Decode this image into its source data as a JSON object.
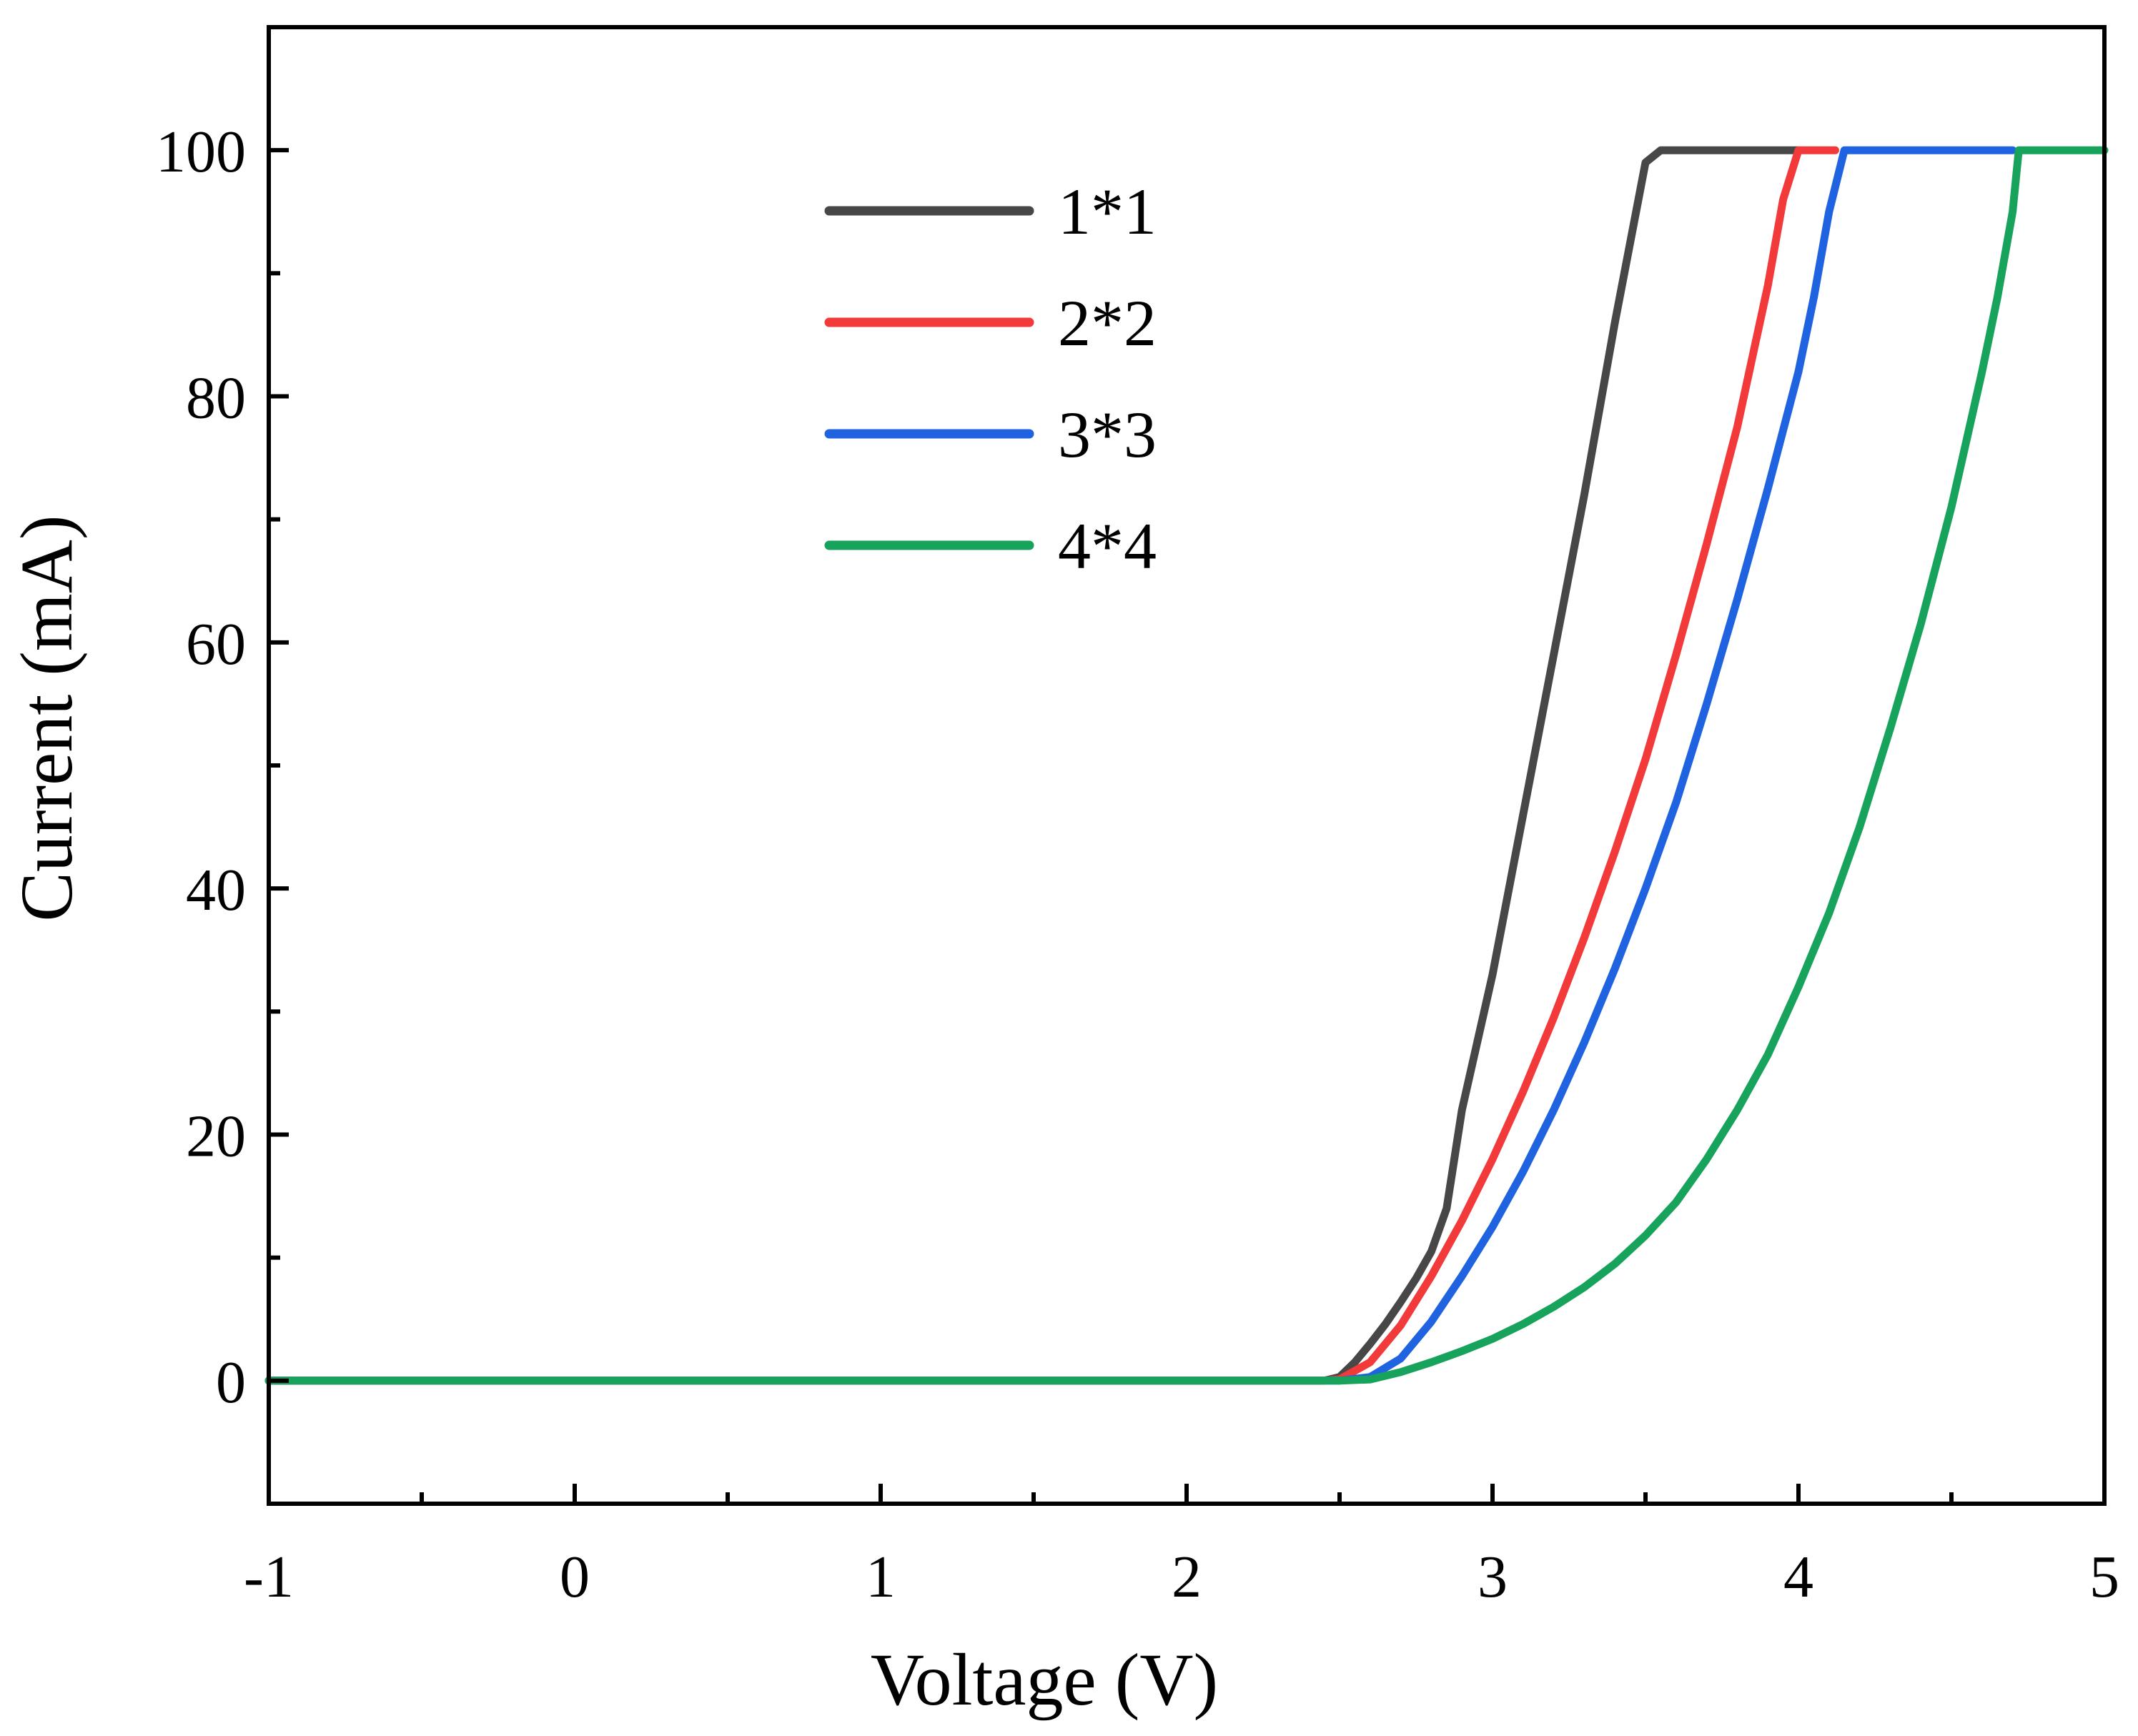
{
  "chart_data": {
    "type": "line",
    "title": "",
    "xlabel": "Voltage (V)",
    "ylabel": "Current (mA)",
    "xlim": [
      -1,
      5
    ],
    "ylim": [
      -10,
      110
    ],
    "xticks": [
      -1,
      0,
      1,
      2,
      3,
      4,
      5
    ],
    "xtick_labels": [
      "-1",
      "0",
      "1",
      "2",
      "3",
      "4",
      "5"
    ],
    "yticks": [
      0,
      20,
      40,
      60,
      80,
      100
    ],
    "ytick_labels": [
      "0",
      "20",
      "40",
      "60",
      "80",
      "100"
    ],
    "grid": false,
    "legend_position": "top-center",
    "series": [
      {
        "name": "1*1",
        "color": "#474747",
        "x": [
          -1,
          2.45,
          2.5,
          2.55,
          2.6,
          2.65,
          2.7,
          2.75,
          2.8,
          2.85,
          2.9,
          3.0,
          3.1,
          3.2,
          3.3,
          3.4,
          3.5,
          3.55,
          3.6,
          4.0
        ],
        "y": [
          0,
          0,
          0.3,
          1.5,
          3.0,
          4.6,
          6.4,
          8.3,
          10.5,
          14,
          22,
          33,
          46,
          59,
          72,
          86,
          99,
          100,
          100,
          100
        ]
      },
      {
        "name": "2*2",
        "color": "#f23a3a",
        "x": [
          -1,
          2.45,
          2.5,
          2.6,
          2.7,
          2.8,
          2.9,
          3.0,
          3.1,
          3.2,
          3.3,
          3.4,
          3.5,
          3.6,
          3.7,
          3.8,
          3.9,
          3.95,
          4.0,
          4.12
        ],
        "y": [
          0,
          0,
          0.1,
          1.5,
          4.5,
          8.5,
          13,
          18,
          23.5,
          29.5,
          36,
          43,
          50.5,
          59,
          68,
          77.5,
          89,
          96,
          100,
          100
        ]
      },
      {
        "name": "3*3",
        "color": "#1f63e0",
        "x": [
          -1,
          2.5,
          2.6,
          2.7,
          2.8,
          2.9,
          3.0,
          3.1,
          3.2,
          3.3,
          3.4,
          3.5,
          3.6,
          3.7,
          3.8,
          3.9,
          4.0,
          4.05,
          4.1,
          4.15,
          4.7
        ],
        "y": [
          0,
          0,
          0.3,
          1.8,
          4.8,
          8.5,
          12.5,
          17,
          22,
          27.5,
          33.5,
          40,
          47,
          55,
          63.5,
          72.5,
          82,
          88,
          95,
          100,
          100
        ]
      },
      {
        "name": "4*4",
        "color": "#17a35c",
        "x": [
          -1,
          2.5,
          2.6,
          2.7,
          2.8,
          2.9,
          3.0,
          3.1,
          3.2,
          3.3,
          3.4,
          3.5,
          3.6,
          3.7,
          3.8,
          3.9,
          4.0,
          4.1,
          4.2,
          4.3,
          4.4,
          4.5,
          4.6,
          4.65,
          4.7,
          4.72,
          5.0
        ],
        "y": [
          0,
          0,
          0.1,
          0.7,
          1.5,
          2.4,
          3.4,
          4.6,
          6.0,
          7.6,
          9.5,
          11.8,
          14.5,
          18,
          22,
          26.5,
          32,
          38,
          45,
          53,
          61.5,
          71,
          82,
          88,
          95,
          100,
          100
        ]
      }
    ]
  }
}
